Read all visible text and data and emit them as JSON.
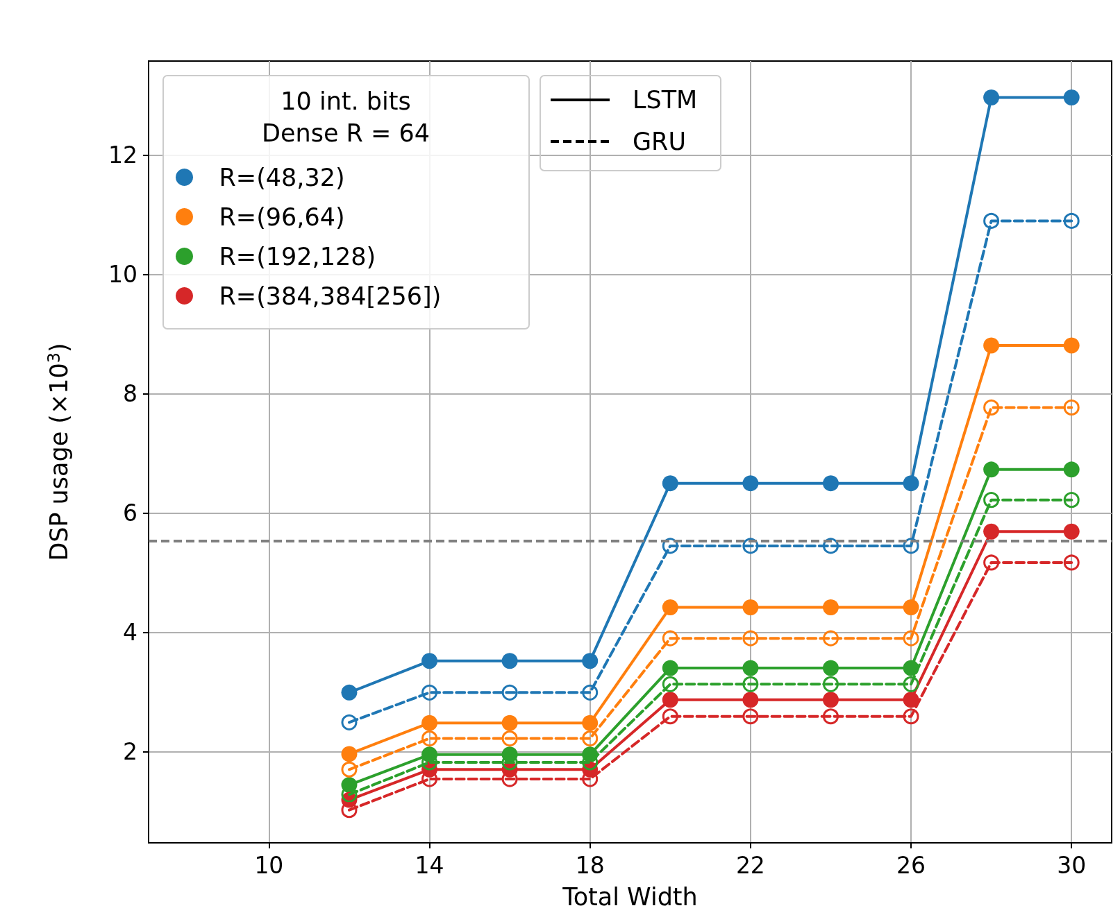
{
  "chart_data": {
    "type": "line",
    "xlabel": "Total Width",
    "ylabel": "DSP usage (×10$^{3}$)",
    "legend_title": "10 int. bits\nDense R = 64",
    "legend": "top left",
    "grid": true,
    "marker": "circle",
    "x": [
      12,
      14,
      16,
      18,
      20,
      22,
      24,
      26,
      28,
      30
    ],
    "xlim": [
      7,
      31
    ],
    "xticks": [
      10,
      14,
      18,
      22,
      26,
      30
    ],
    "ylim": [
      0.47,
      13.58
    ],
    "yticks": [
      2,
      4,
      6,
      8,
      10,
      12
    ],
    "series": [
      {
        "name": "R=(48,32)",
        "color": "#1f77b4",
        "line_style": "solid",
        "values": [
          2.99,
          3.52,
          3.52,
          3.52,
          6.5,
          6.5,
          6.5,
          6.5,
          12.97,
          12.97
        ]
      },
      {
        "name": "R=(96,64)",
        "color": "#ff7f0e",
        "line_style": "solid",
        "values": [
          1.96,
          2.48,
          2.48,
          2.48,
          4.42,
          4.42,
          4.42,
          4.42,
          8.81,
          8.81
        ]
      },
      {
        "name": "R=(192,128)",
        "color": "#2ca02c",
        "line_style": "solid",
        "values": [
          1.44,
          1.95,
          1.95,
          1.95,
          3.4,
          3.4,
          3.4,
          3.4,
          6.73,
          6.73
        ]
      },
      {
        "name": "R=(384,384[256])",
        "color": "#d62728",
        "line_style": "solid",
        "values": [
          1.19,
          1.7,
          1.7,
          1.7,
          2.87,
          2.87,
          2.87,
          2.87,
          5.69,
          5.69
        ]
      },
      {
        "color": "#1f77b4",
        "line_style": "dashed",
        "values": [
          2.49,
          2.99,
          2.99,
          2.99,
          5.45,
          5.45,
          5.45,
          5.45,
          10.9,
          10.9
        ]
      },
      {
        "color": "#ff7f0e",
        "line_style": "dashed",
        "values": [
          1.7,
          2.22,
          2.22,
          2.22,
          3.9,
          3.9,
          3.9,
          3.9,
          7.77,
          7.77
        ]
      },
      {
        "color": "#2ca02c",
        "line_style": "dashed",
        "values": [
          1.28,
          1.82,
          1.82,
          1.82,
          3.13,
          3.13,
          3.13,
          3.13,
          6.22,
          6.22
        ]
      },
      {
        "color": "#d62728",
        "line_style": "dashed",
        "values": [
          1.02,
          1.54,
          1.54,
          1.54,
          2.59,
          2.59,
          2.59,
          2.59,
          5.17,
          5.17
        ]
      }
    ],
    "ref_lines": [
      {
        "axis": "y",
        "value": 5.53,
        "color": "#808080",
        "line_style": "dashed"
      }
    ],
    "annotations": [
      "LSTM",
      "GRU"
    ]
  }
}
